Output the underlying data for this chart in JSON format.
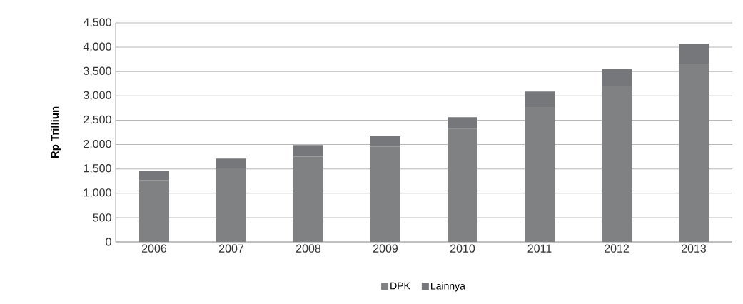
{
  "chart_data": {
    "type": "bar",
    "stacked": true,
    "ylabel": "Rp Trilliun",
    "categories": [
      "2006",
      "2007",
      "2008",
      "2009",
      "2010",
      "2011",
      "2012",
      "2013"
    ],
    "series": [
      {
        "name": "DPK",
        "color": "#808183",
        "values": [
          1270,
          1510,
          1750,
          1960,
          2320,
          2770,
          3210,
          3660
        ]
      },
      {
        "name": "Lainnya",
        "color": "#76777a",
        "values": [
          180,
          200,
          240,
          210,
          240,
          320,
          340,
          410
        ]
      }
    ],
    "ylim": [
      0,
      4500
    ],
    "yticks": [
      0,
      500,
      {
        "value": 1000,
        "label": "1,000"
      },
      {
        "value": 1500,
        "label": "1,500"
      },
      {
        "value": 2000,
        "label": "2,000"
      },
      {
        "value": 2500,
        "label": "2,500"
      },
      {
        "value": 3000,
        "label": "3,000"
      },
      {
        "value": 3500,
        "label": "3,500"
      },
      {
        "value": 4000,
        "label": "4,000"
      },
      {
        "value": 4500,
        "label": "4,500"
      }
    ],
    "grid": "y",
    "legend": "bottom"
  }
}
